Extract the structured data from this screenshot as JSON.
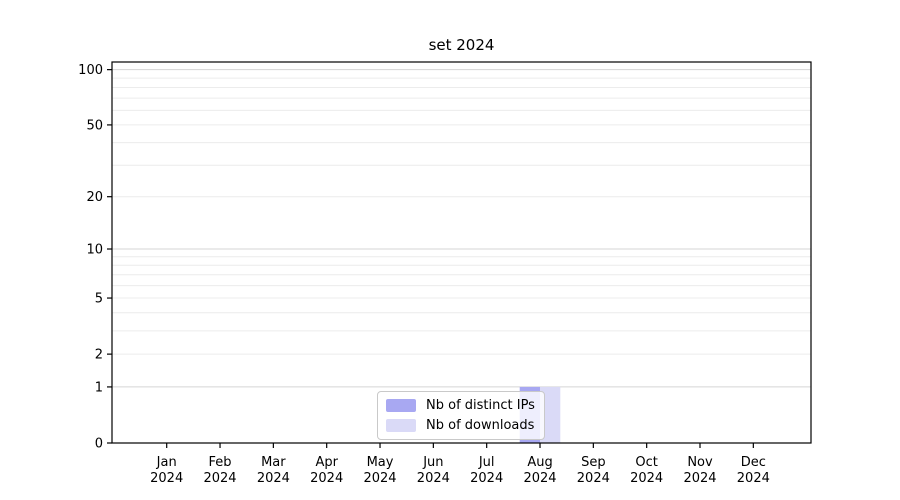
{
  "title": "set 2024",
  "chart_data": {
    "type": "bar",
    "title": "set 2024",
    "categories": [
      "Jan",
      "Feb",
      "Mar",
      "Apr",
      "May",
      "Jun",
      "Jul",
      "Aug",
      "Sep",
      "Oct",
      "Nov",
      "Dec"
    ],
    "year_label": "2024",
    "series": [
      {
        "name": "Nb of distinct IPs",
        "color": "#a8a8f2",
        "values": [
          0,
          0,
          0,
          0,
          0,
          0,
          0,
          1,
          0,
          0,
          0,
          0
        ]
      },
      {
        "name": "Nb of downloads",
        "color": "#dadaf7",
        "values": [
          0,
          0,
          0,
          0,
          0,
          0,
          0,
          1,
          0,
          0,
          0,
          0
        ]
      }
    ],
    "xlabel": "",
    "ylabel": "",
    "yscale": "log1p",
    "ylim": [
      0,
      110
    ],
    "yticks": [
      0,
      1,
      2,
      5,
      10,
      20,
      50,
      100
    ],
    "minor_gridlines": [
      2,
      3,
      4,
      5,
      6,
      7,
      8,
      9,
      20,
      30,
      40,
      50,
      60,
      70,
      80,
      90
    ],
    "major_gridlines": [
      1,
      10,
      100
    ],
    "grid_color_minor": "#ececec",
    "grid_color_major": "#d5d5d5",
    "axis_color": "#000000",
    "legend_position": "lower center"
  },
  "legend": {
    "items": [
      {
        "label": "Nb of distinct IPs",
        "color": "#a8a8f2"
      },
      {
        "label": "Nb of downloads",
        "color": "#dadaf7"
      }
    ]
  }
}
